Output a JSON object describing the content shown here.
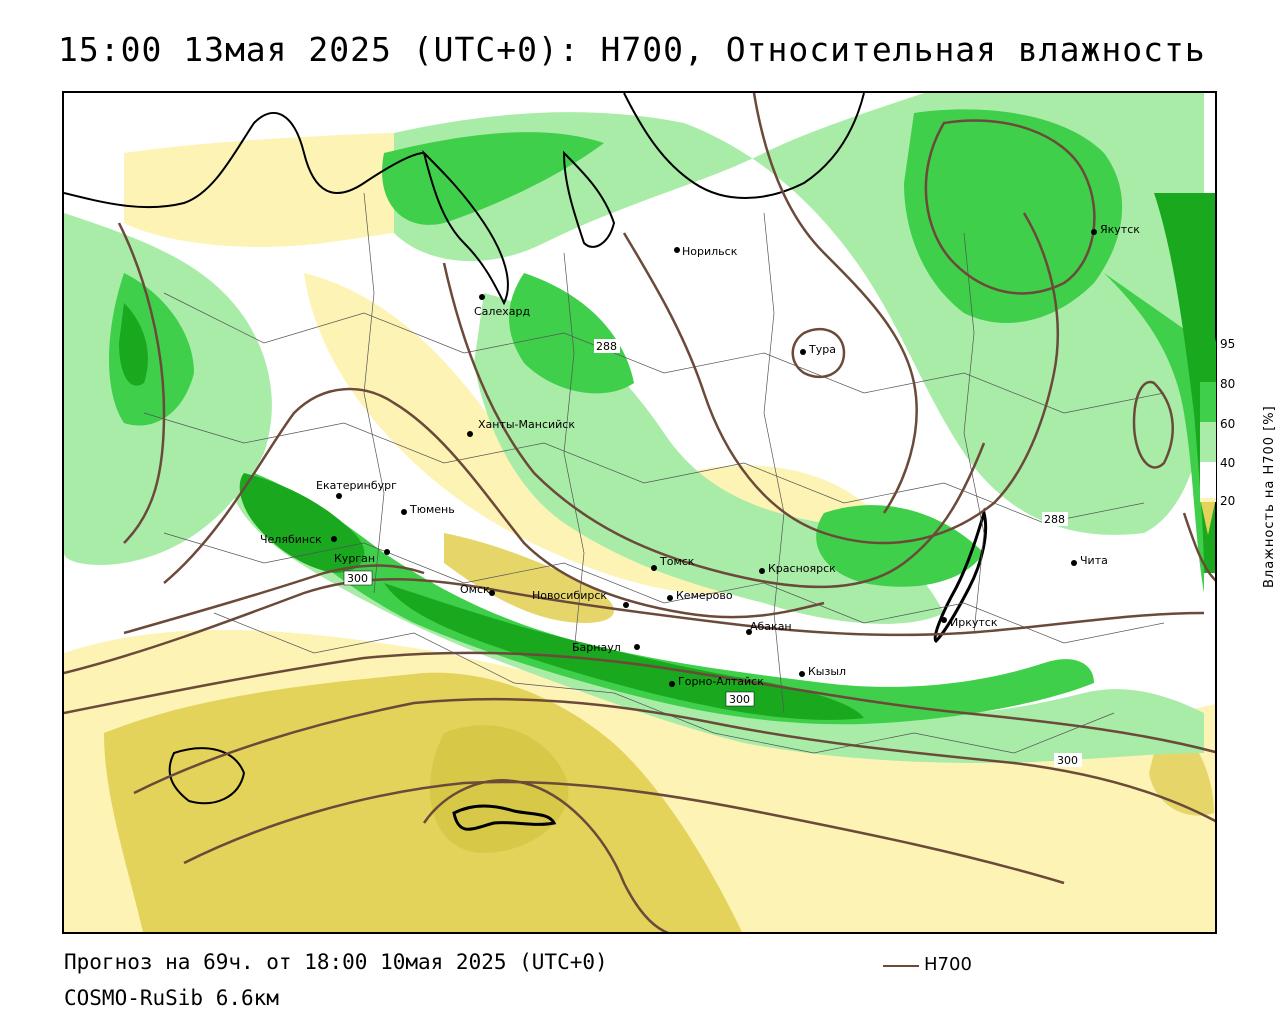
{
  "header": {
    "title": "15:00 13мая 2025 (UTC+0): H700, Относительная влажность"
  },
  "map": {
    "cities": [
      {
        "name": "Салехард"
      },
      {
        "name": "Норильск"
      },
      {
        "name": "Якутск"
      },
      {
        "name": "Тура"
      },
      {
        "name": "Ханты-Мансийск"
      },
      {
        "name": "Екатеринбург"
      },
      {
        "name": "Тюмень"
      },
      {
        "name": "Челябинск"
      },
      {
        "name": "Курган"
      },
      {
        "name": "Омск"
      },
      {
        "name": "Новосибирск"
      },
      {
        "name": "Томск"
      },
      {
        "name": "Кемерово"
      },
      {
        "name": "Красноярск"
      },
      {
        "name": "Абакан"
      },
      {
        "name": "Барнаул"
      },
      {
        "name": "Горно-Алтайск"
      },
      {
        "name": "Кызыл"
      },
      {
        "name": "Иркутск"
      },
      {
        "name": "Чита"
      }
    ],
    "contour_labels": [
      "288",
      "288",
      "300",
      "300",
      "300"
    ],
    "colors": {
      "humid_dark": "#19a81e",
      "humid_mid": "#3fcf4a",
      "humid_light": "#a8eca8",
      "dry_light": "#fdf3b4",
      "dry_mid": "#e3d35a",
      "contour": "#6b4a3a"
    }
  },
  "colorbar": {
    "ticks": [
      "95",
      "80",
      "60",
      "40",
      "20"
    ],
    "title": "Влажность на H700 [%]"
  },
  "footer": {
    "forecast": "Прогноз на 69ч. от 18:00 10мая 2025 (UTC+0)",
    "model": "COSMO-RuSib 6.6км",
    "legend_label": "H700"
  }
}
